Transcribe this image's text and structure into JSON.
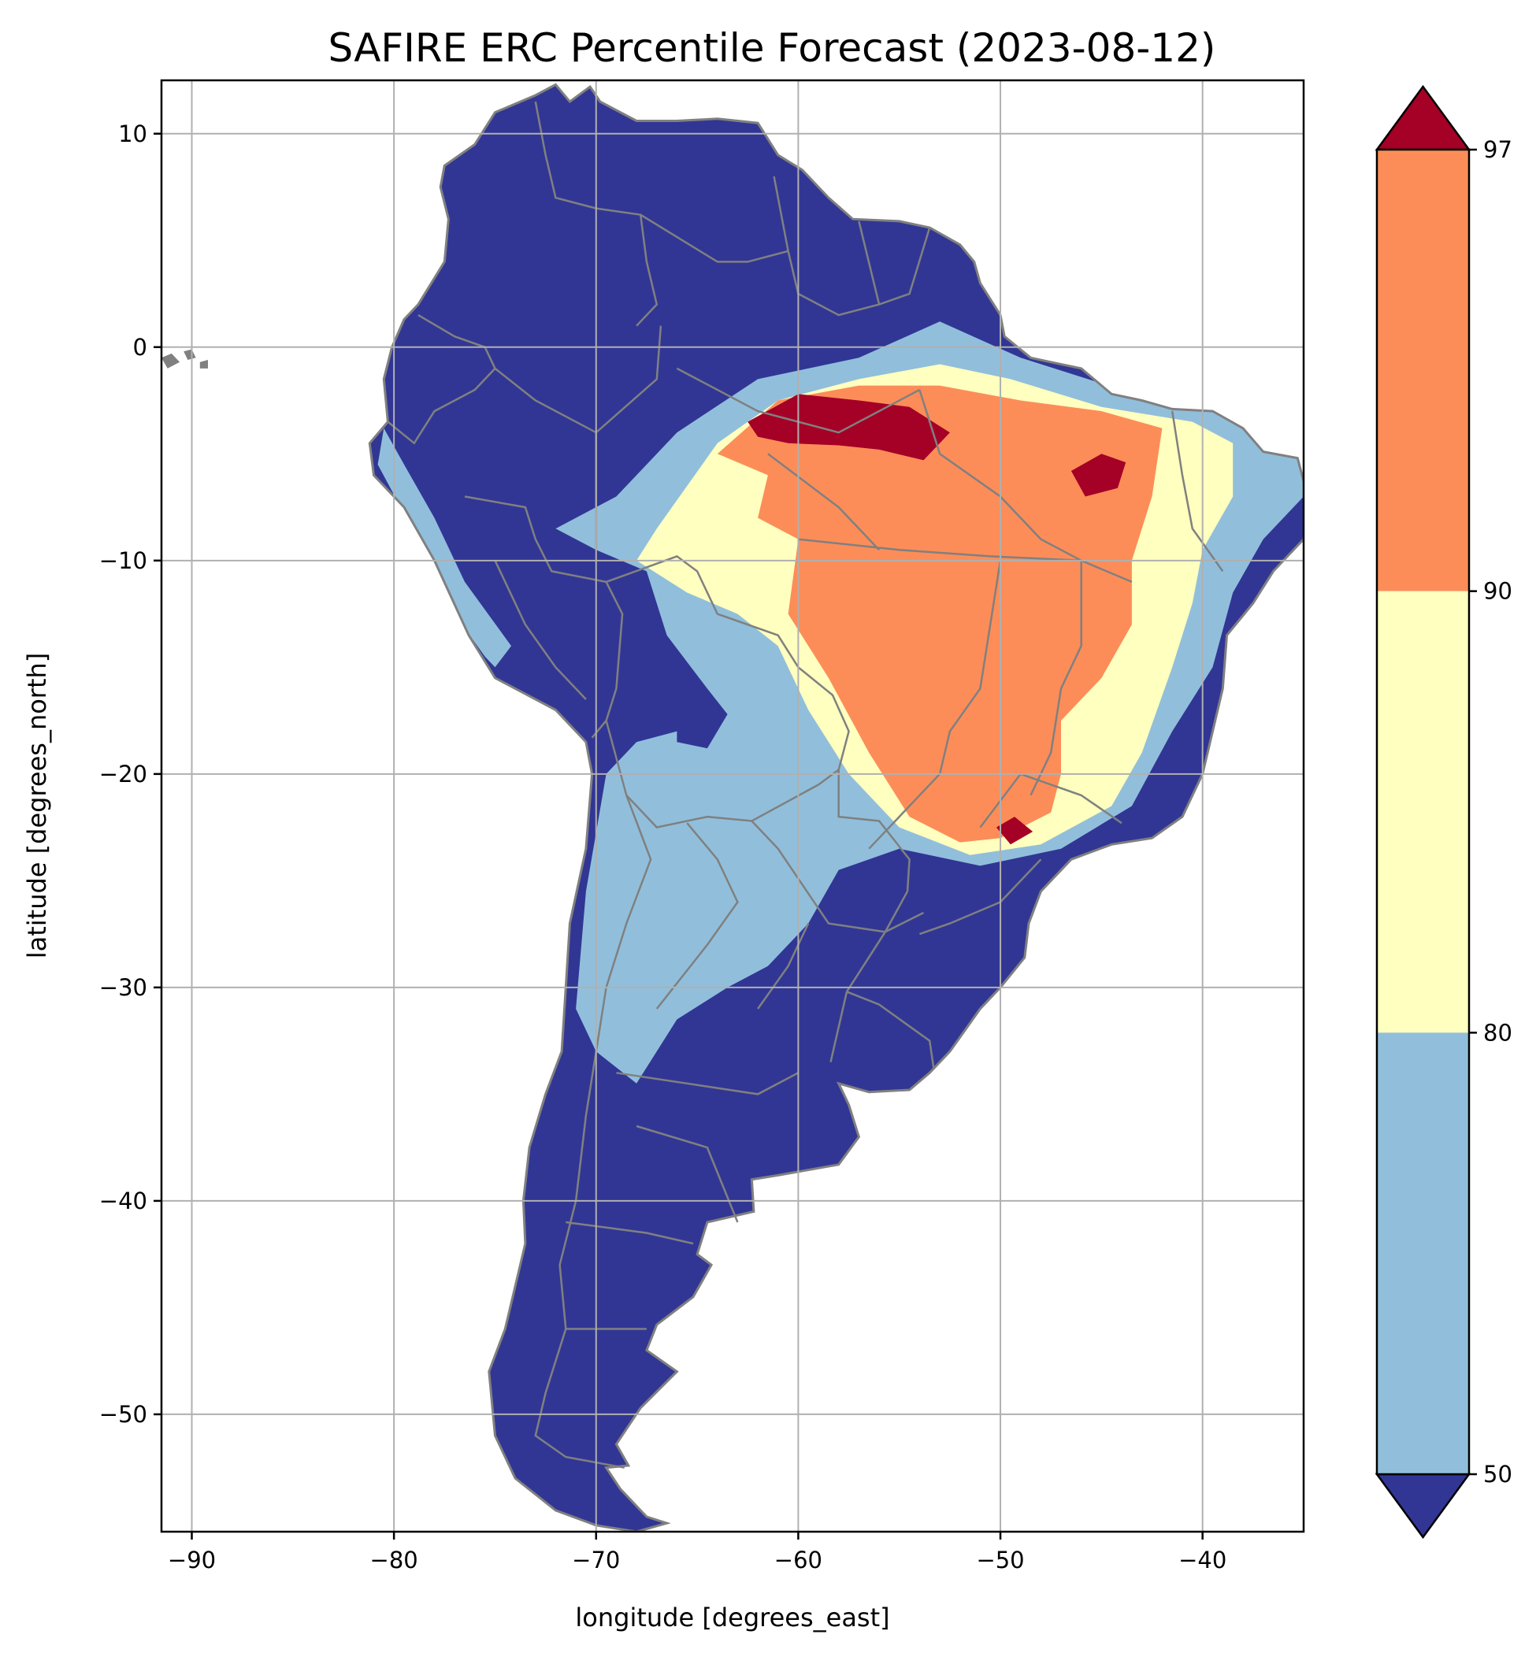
{
  "figure": {
    "title": "SAFIRE ERC Percentile Forecast (2023-08-12)",
    "xlabel": "longitude [degrees_east]",
    "ylabel": "latitude [degrees_north]",
    "xticks": [
      "−90",
      "−80",
      "−70",
      "−60",
      "−50",
      "−40"
    ],
    "yticks": [
      "10",
      "0",
      "−10",
      "−20",
      "−30",
      "−40",
      "−50"
    ]
  },
  "map": {
    "xlim": [
      -91.5,
      -35
    ],
    "ylim": [
      -55.5,
      12.5
    ],
    "xtick_values": [
      -90,
      -80,
      -70,
      -60,
      -50,
      -40
    ],
    "ytick_values": [
      10,
      0,
      -10,
      -20,
      -30,
      -40,
      -50
    ],
    "grid": true,
    "border_color": "#808080",
    "grid_color": "#b0b0b0"
  },
  "colorbar": {
    "labels": [
      "50",
      "80",
      "90",
      "97"
    ],
    "bins": [
      {
        "range": "<50",
        "color": "#313695"
      },
      {
        "range": "50-80",
        "color": "#91bfdb"
      },
      {
        "range": "80-90",
        "color": "#ffffbf"
      },
      {
        "range": "90-97",
        "color": "#fc8d59"
      },
      {
        "range": ">97",
        "color": "#a50026"
      }
    ],
    "extend": "both"
  }
}
